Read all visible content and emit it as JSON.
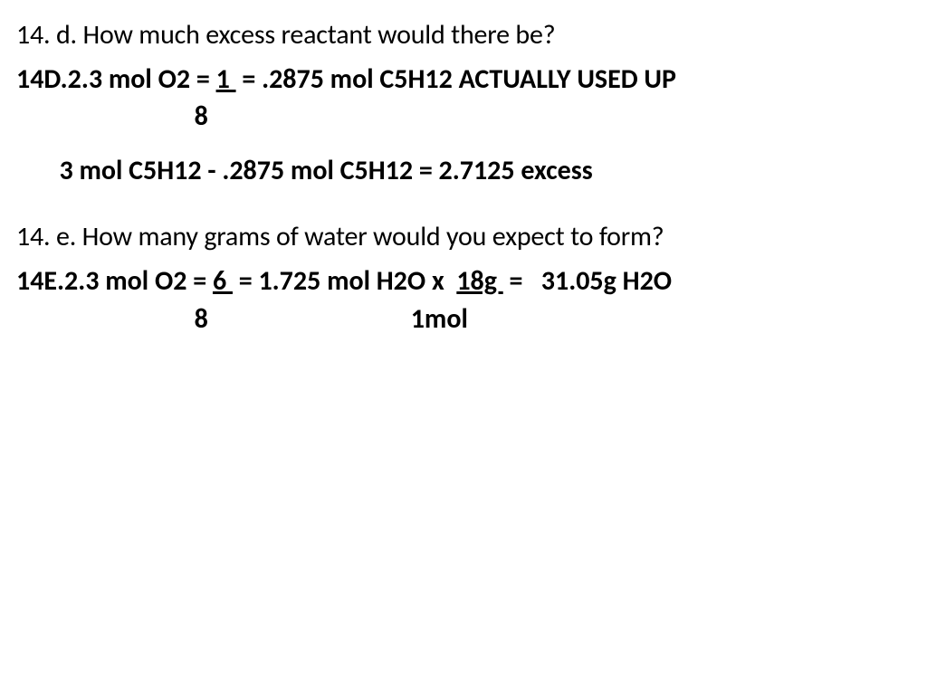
{
  "question_d": "14. d. How much excess reactant would there be?",
  "answer_d": {
    "line1_prefix": "14D.2.3 mol O2 = ",
    "line1_frac_num": "1 ",
    "line1_mid": " = .2875 mol C5H12 ACTUALLY USED UP",
    "line2": "                             8",
    "line3": "       3 mol C5H12 - .2875 mol C5H12 = 2.7125 excess"
  },
  "question_e": "14. e. How many grams of water would you expect to form?",
  "answer_e": {
    "line1_prefix": "14E.2.3 mol O2 = ",
    "line1_frac1": "6 ",
    "line1_mid1": " = 1.725 mol H2O x  ",
    "line1_frac2": "18g ",
    "line1_mid2": " =   31.05g H2O",
    "line2": "                             8                                 1mol"
  },
  "colors": {
    "text": "#000000",
    "background": "#ffffff"
  },
  "font": {
    "family": "Calibri",
    "question_size_pt": 22,
    "answer_size_pt": 22,
    "question_weight": "normal",
    "answer_weight": "bold"
  }
}
